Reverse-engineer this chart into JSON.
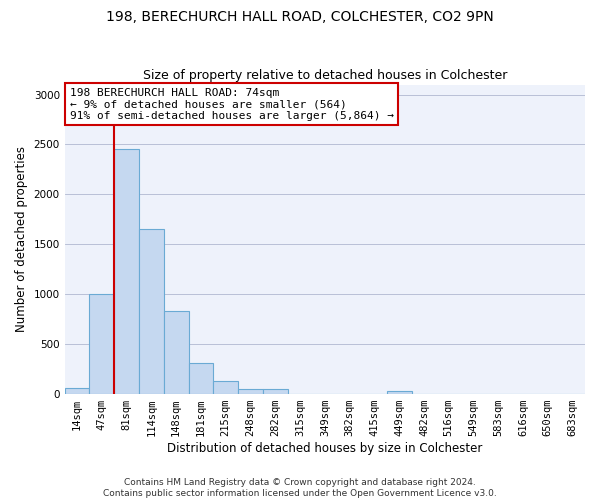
{
  "title_line1": "198, BERECHURCH HALL ROAD, COLCHESTER, CO2 9PN",
  "title_line2": "Size of property relative to detached houses in Colchester",
  "xlabel": "Distribution of detached houses by size in Colchester",
  "ylabel": "Number of detached properties",
  "categories": [
    "14sqm",
    "47sqm",
    "81sqm",
    "114sqm",
    "148sqm",
    "181sqm",
    "215sqm",
    "248sqm",
    "282sqm",
    "315sqm",
    "349sqm",
    "382sqm",
    "415sqm",
    "449sqm",
    "482sqm",
    "516sqm",
    "549sqm",
    "583sqm",
    "616sqm",
    "650sqm",
    "683sqm"
  ],
  "values": [
    60,
    1000,
    2450,
    1650,
    830,
    310,
    130,
    55,
    50,
    0,
    0,
    0,
    0,
    30,
    0,
    0,
    0,
    0,
    0,
    0,
    0
  ],
  "bar_color": "#c5d8f0",
  "bar_edge_color": "#6aaad4",
  "grid_color": "#b0b8d0",
  "vline_x": 1.5,
  "vline_color": "#cc0000",
  "annotation_text_line1": "198 BERECHURCH HALL ROAD: 74sqm",
  "annotation_text_line2": "← 9% of detached houses are smaller (564)",
  "annotation_text_line3": "91% of semi-detached houses are larger (5,864) →",
  "annotation_box_color": "#cc0000",
  "ylim": [
    0,
    3100
  ],
  "yticks": [
    0,
    500,
    1000,
    1500,
    2000,
    2500,
    3000
  ],
  "background_color": "#eef2fb",
  "footer_text": "Contains HM Land Registry data © Crown copyright and database right 2024.\nContains public sector information licensed under the Open Government Licence v3.0.",
  "title_fontsize": 10,
  "subtitle_fontsize": 9,
  "axis_label_fontsize": 8.5,
  "tick_fontsize": 7.5,
  "annotation_fontsize": 8,
  "footer_fontsize": 6.5
}
